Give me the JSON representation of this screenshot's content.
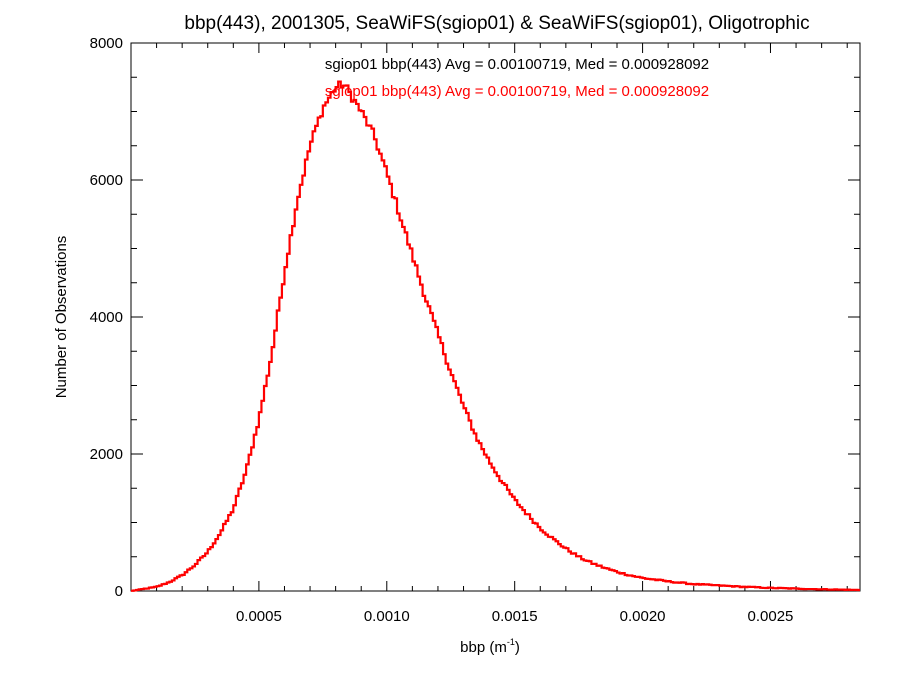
{
  "chart_data": {
    "type": "histogram",
    "title": "bbp(443), 2001305, SeaWiFS(sgiop01) & SeaWiFS(sgiop01), Oligotrophic",
    "xlabel": {
      "base": "bbp (m",
      "sup": "-1",
      "close": ")"
    },
    "ylabel": "Number of Observations",
    "xlim": [
      0.0,
      0.00285
    ],
    "ylim": [
      0,
      8000
    ],
    "x_ticks": [
      {
        "value": 0.0005,
        "label": "0.0005"
      },
      {
        "value": 0.001,
        "label": "0.0010"
      },
      {
        "value": 0.0015,
        "label": "0.0015"
      },
      {
        "value": 0.002,
        "label": "0.0020"
      },
      {
        "value": 0.0025,
        "label": "0.0025"
      }
    ],
    "y_ticks": [
      {
        "value": 0,
        "label": "0"
      },
      {
        "value": 2000,
        "label": "2000"
      },
      {
        "value": 4000,
        "label": "4000"
      },
      {
        "value": 6000,
        "label": "6000"
      },
      {
        "value": 8000,
        "label": "8000"
      }
    ],
    "annotations": [
      {
        "text": "sgiop01 bbp(443) Avg = 0.00100719, Med = 0.000928092",
        "color": "#000000"
      },
      {
        "text": "sgiop01 bbp(443) Avg = 0.00100719, Med = 0.000928092",
        "color": "#ff0000"
      }
    ],
    "series": [
      {
        "color": "#ff0000",
        "curve_points": [
          [
            0.0,
            0
          ],
          [
            5e-05,
            30
          ],
          [
            0.0001,
            60
          ],
          [
            0.00015,
            130
          ],
          [
            0.0002,
            230
          ],
          [
            0.00025,
            380
          ],
          [
            0.0003,
            570
          ],
          [
            0.00035,
            850
          ],
          [
            0.0004,
            1200
          ],
          [
            0.00045,
            1750
          ],
          [
            0.0005,
            2500
          ],
          [
            0.00055,
            3450
          ],
          [
            0.0006,
            4650
          ],
          [
            0.00065,
            5700
          ],
          [
            0.0007,
            6500
          ],
          [
            0.00075,
            7050
          ],
          [
            0.0008,
            7350
          ],
          [
            0.00083,
            7400
          ],
          [
            0.00085,
            7300
          ],
          [
            0.0009,
            7000
          ],
          [
            0.00095,
            6650
          ],
          [
            0.001,
            6100
          ],
          [
            0.00105,
            5500
          ],
          [
            0.0011,
            4900
          ],
          [
            0.00115,
            4300
          ],
          [
            0.0012,
            3750
          ],
          [
            0.00125,
            3200
          ],
          [
            0.0013,
            2700
          ],
          [
            0.00135,
            2250
          ],
          [
            0.0014,
            1900
          ],
          [
            0.00145,
            1600
          ],
          [
            0.0015,
            1330
          ],
          [
            0.00155,
            1120
          ],
          [
            0.0016,
            920
          ],
          [
            0.00165,
            760
          ],
          [
            0.0017,
            620
          ],
          [
            0.00175,
            500
          ],
          [
            0.0018,
            410
          ],
          [
            0.00185,
            340
          ],
          [
            0.0019,
            280
          ],
          [
            0.00195,
            230
          ],
          [
            0.002,
            190
          ],
          [
            0.0021,
            140
          ],
          [
            0.0022,
            100
          ],
          [
            0.0023,
            80
          ],
          [
            0.0024,
            60
          ],
          [
            0.0025,
            45
          ],
          [
            0.0026,
            35
          ],
          [
            0.0027,
            25
          ],
          [
            0.00285,
            15
          ]
        ]
      }
    ],
    "grid": false
  }
}
